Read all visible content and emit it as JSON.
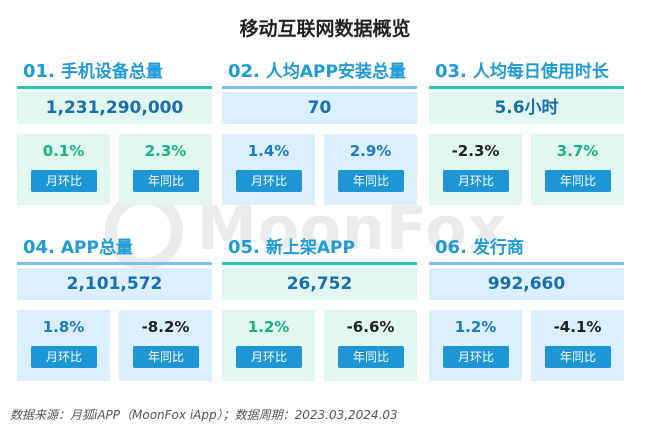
{
  "page_title": "移动互联网数据概览",
  "watermark": "MoonFox",
  "cards": [
    {
      "num": "01.",
      "label": "手机设备总量",
      "value": "1,231,290,000",
      "mom_value": "0.1%",
      "mom_label": "月环比",
      "yoy_value": "2.3%",
      "yoy_label": "年同比",
      "theme": "green"
    },
    {
      "num": "02.",
      "label": "人均APP安装总量",
      "value": "70",
      "mom_value": "1.4%",
      "mom_label": "月环比",
      "yoy_value": "2.9%",
      "yoy_label": "年同比",
      "theme": "blue"
    },
    {
      "num": "03.",
      "label": "人均每日使用时长",
      "value": "5.6小时",
      "mom_value": "-2.3%",
      "mom_label": "月环比",
      "yoy_value": "3.7%",
      "yoy_label": "年同比",
      "theme": "green"
    },
    {
      "num": "04.",
      "label": "APP总量",
      "value": "2,101,572",
      "mom_value": "1.8%",
      "mom_label": "月环比",
      "yoy_value": "-8.2%",
      "yoy_label": "年同比",
      "theme": "blue"
    },
    {
      "num": "05.",
      "label": "新上架APP",
      "value": "26,752",
      "mom_value": "1.2%",
      "mom_label": "月环比",
      "yoy_value": "-6.6%",
      "yoy_label": "年同比",
      "theme": "green"
    },
    {
      "num": "06.",
      "label": "发行商",
      "value": "992,660",
      "mom_value": "1.2%",
      "mom_label": "月环比",
      "yoy_value": "-4.1%",
      "yoy_label": "年同比",
      "theme": "blue"
    }
  ],
  "colors": {
    "green_fill": "#e3f7f1",
    "blue_fill": "#dcefff",
    "green_line": "#2ec4a8",
    "blue_line": "#7cc0ee",
    "positive_green": "#19b38b",
    "positive_blue": "#1a7fc4",
    "negative": "#222222",
    "button": "#1e96d6"
  },
  "footer": "数据来源：月狐iAPP（MoonFox iApp）；数据周期：2023.03,2024.03"
}
